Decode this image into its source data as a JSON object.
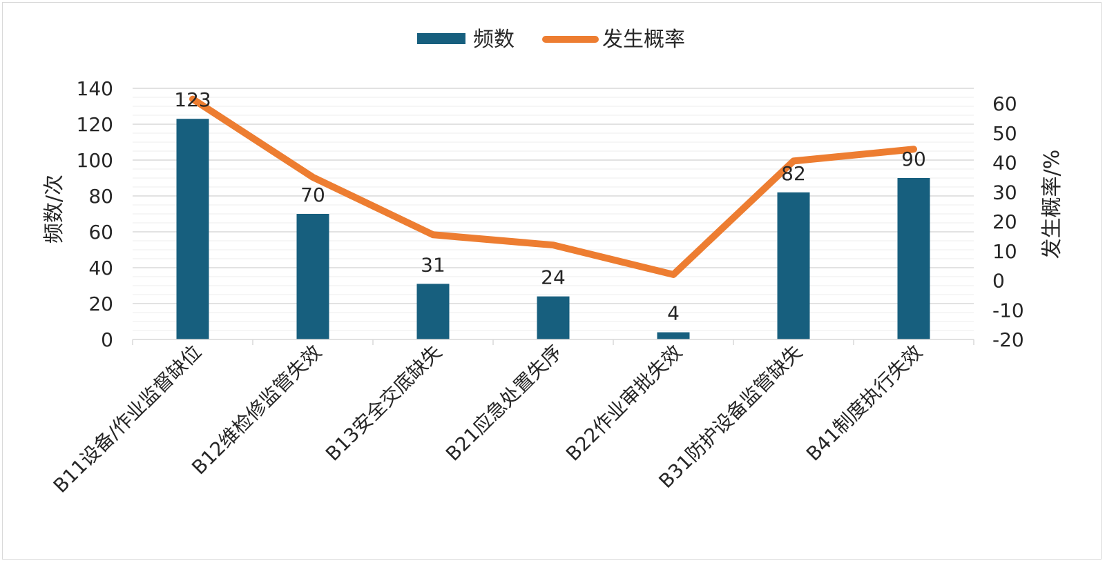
{
  "chart_data": {
    "type": "bar+line",
    "categories": [
      "B11设备/作业监督缺位",
      "B12维检修监管失效",
      "B13安全交底缺失",
      "B21应急处置失序",
      "B22作业审批失效",
      "B31防护设备监管缺失",
      "B41制度执行失效"
    ],
    "series": [
      {
        "name": "频数",
        "type": "bar",
        "axis": "left",
        "color": "#175f7e",
        "values": [
          123,
          70,
          31,
          24,
          4,
          82,
          90
        ]
      },
      {
        "name": "发生概率",
        "type": "line",
        "axis": "right",
        "color": "#ed7d31",
        "values": [
          61.5,
          35,
          15.5,
          12,
          2,
          40.5,
          44.5
        ]
      }
    ],
    "data_labels": [
      "123",
      "70",
      "31",
      "24",
      "4",
      "82",
      "90"
    ],
    "ylabel_left": "频数/次",
    "ylabel_right": "发生概率/%",
    "ylim_left": [
      0,
      140
    ],
    "yticks_left": [
      "0",
      "20",
      "40",
      "60",
      "80",
      "100",
      "120",
      "140"
    ],
    "ylim_right": [
      -20,
      60
    ],
    "yticks_right": [
      "-20",
      "-10",
      "0",
      "10",
      "20",
      "30",
      "40",
      "50",
      "60"
    ],
    "legend_position": "top-center",
    "grid": true
  }
}
